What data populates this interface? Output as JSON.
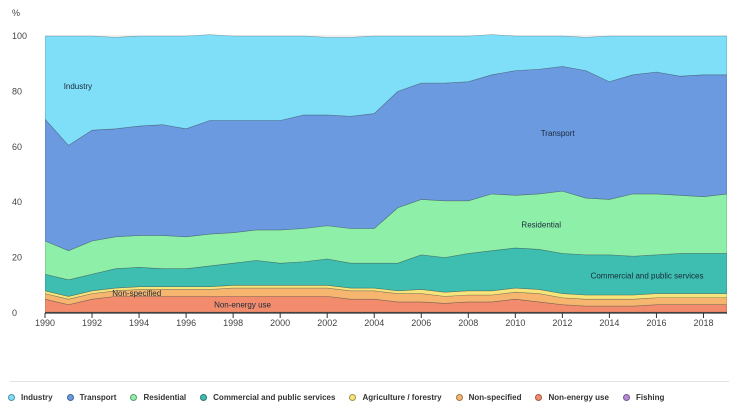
{
  "chart_data": {
    "type": "area",
    "stacked": true,
    "y_unit": "%",
    "ylim": [
      0,
      100
    ],
    "y_ticks": [
      "0",
      "20",
      "40",
      "60",
      "80",
      "100"
    ],
    "x": [
      1990,
      1991,
      1992,
      1993,
      1994,
      1995,
      1996,
      1997,
      1998,
      1999,
      2000,
      2001,
      2002,
      2003,
      2004,
      2005,
      2006,
      2007,
      2008,
      2009,
      2010,
      2011,
      2012,
      2013,
      2014,
      2015,
      2016,
      2017,
      2018,
      2019
    ],
    "x_ticks": [
      "1990",
      "1992",
      "1994",
      "1996",
      "1998",
      "2000",
      "2002",
      "2004",
      "2006",
      "2008",
      "2010",
      "2012",
      "2014",
      "2016",
      "2018"
    ],
    "grid": true,
    "legend_position": "bottom",
    "series": [
      {
        "name": "Fishing",
        "color": "#b48ad6",
        "values": [
          0.3,
          0.3,
          0.3,
          0.3,
          0.3,
          0.3,
          0.3,
          0.3,
          0.3,
          0.3,
          0.3,
          0.3,
          0.3,
          0.3,
          0.3,
          0.3,
          0.3,
          0.3,
          0.3,
          0.3,
          0.3,
          0.3,
          0.3,
          0.3,
          0.3,
          0.3,
          0.3,
          0.3,
          0.3,
          0.3
        ]
      },
      {
        "name": "Non-energy use",
        "color": "#f28c6c",
        "values": [
          4.7,
          2.7,
          4.7,
          5.7,
          5.7,
          5.7,
          5.7,
          5.7,
          5.7,
          5.7,
          5.7,
          5.7,
          5.7,
          4.7,
          4.7,
          3.7,
          3.7,
          3.2,
          3.7,
          3.7,
          4.7,
          3.7,
          2.7,
          2.2,
          2.2,
          2.2,
          2.7,
          2.7,
          2.7,
          2.7
        ]
      },
      {
        "name": "Non-specified",
        "color": "#f6b66f",
        "values": [
          2.0,
          2.0,
          2.0,
          2.0,
          2.5,
          2.5,
          2.5,
          2.5,
          3.0,
          3.0,
          3.0,
          3.0,
          3.0,
          3.0,
          3.0,
          3.0,
          3.0,
          2.5,
          2.5,
          2.5,
          2.5,
          3.0,
          2.5,
          2.5,
          2.5,
          2.5,
          2.5,
          2.5,
          2.5,
          2.5
        ]
      },
      {
        "name": "Agriculture / forestry",
        "color": "#f7e47a",
        "values": [
          1.0,
          1.0,
          1.0,
          1.0,
          1.0,
          1.0,
          1.0,
          1.0,
          1.0,
          1.0,
          1.0,
          1.0,
          1.0,
          1.0,
          1.0,
          1.0,
          1.5,
          1.5,
          1.5,
          1.5,
          1.5,
          1.5,
          1.5,
          1.5,
          1.5,
          1.5,
          1.5,
          1.5,
          1.5,
          1.5
        ]
      },
      {
        "name": "Commercial and public services",
        "color": "#3dbeb0",
        "values": [
          6,
          6,
          6,
          7,
          7,
          6.5,
          6.5,
          7.5,
          8,
          9,
          8,
          8.5,
          9.5,
          9,
          9,
          10,
          12.5,
          12.5,
          13.5,
          14.5,
          14.5,
          14.5,
          14.5,
          14.5,
          14.5,
          14,
          14,
          14.5,
          14.5,
          14.5
        ]
      },
      {
        "name": "Residential",
        "color": "#8ef0a8",
        "values": [
          12,
          10.5,
          12,
          11.5,
          11.5,
          12,
          11.5,
          11.5,
          11,
          11,
          12,
          12,
          12,
          12.5,
          12.5,
          20,
          20,
          20.5,
          19,
          20.5,
          19,
          20,
          22.5,
          20.5,
          20,
          22.5,
          22,
          21,
          20.5,
          21.5
        ]
      },
      {
        "name": "Transport",
        "color": "#6b9ae0",
        "values": [
          44,
          38,
          40,
          39,
          39.5,
          40,
          39,
          41,
          40.5,
          39.5,
          39.5,
          41,
          40,
          40.5,
          41.5,
          42,
          42,
          42.5,
          43,
          43,
          45,
          45,
          45,
          46,
          42.5,
          43,
          44,
          43,
          44,
          43
        ]
      },
      {
        "name": "Industry",
        "color": "#7fdff8",
        "values": [
          30,
          39.5,
          34,
          33,
          32.5,
          32,
          33.5,
          31,
          30.5,
          30.5,
          30.5,
          28.5,
          28,
          28.5,
          28,
          20,
          17,
          17,
          16.5,
          14.5,
          12.5,
          12,
          11,
          12,
          16.5,
          14,
          13,
          14.5,
          14,
          14
        ]
      }
    ],
    "annotations": [
      {
        "text": "Industry",
        "x": 1991.4,
        "y": 82
      },
      {
        "text": "Transport",
        "x": 2011.8,
        "y": 65
      },
      {
        "text": "Residential",
        "x": 2011.1,
        "y": 32
      },
      {
        "text": "Commercial and public services",
        "x": 2015.6,
        "y": 13.5
      },
      {
        "text": "Non-specified",
        "x": 1993.9,
        "y": 7.2
      },
      {
        "text": "Non-energy use",
        "x": 1998.4,
        "y": 3.1
      }
    ]
  },
  "legend": [
    {
      "label": "Industry",
      "color": "#7fdff8"
    },
    {
      "label": "Transport",
      "color": "#6b9ae0"
    },
    {
      "label": "Residential",
      "color": "#8ef0a8"
    },
    {
      "label": "Commercial and public services",
      "color": "#3dbeb0"
    },
    {
      "label": "Agriculture / forestry",
      "color": "#f7e47a"
    },
    {
      "label": "Non-specified",
      "color": "#f6b66f"
    },
    {
      "label": "Non-energy use",
      "color": "#f28c6c"
    },
    {
      "label": "Fishing",
      "color": "#b48ad6"
    }
  ]
}
